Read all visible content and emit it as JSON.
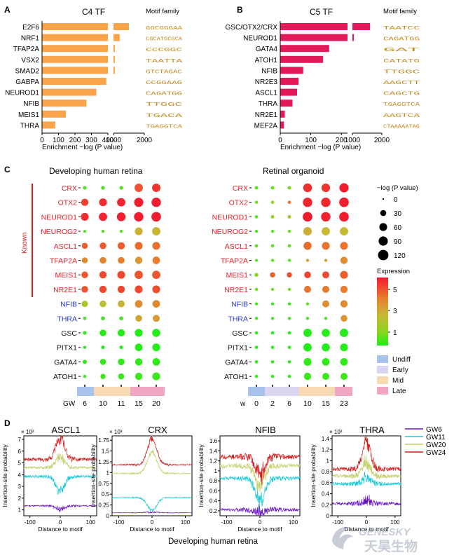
{
  "panels": {
    "A": {
      "letter": "A",
      "title": "C4 TF",
      "motif_title": "Motif family",
      "xlabel": "Enrichment −log (P value)",
      "ticks": [
        "0",
        "100",
        "200",
        "300",
        "400",
        "1000",
        "2000"
      ],
      "logos": [
        "GGCGGGAA",
        "CGCATGCGCA",
        "CCCGGC",
        "TAATTA",
        "GTCTAGAC",
        "CCGGAAG",
        "CAGATGG",
        "TTGGC",
        "TGACA",
        "TGAGGTCA"
      ]
    },
    "B": {
      "letter": "B",
      "title": "C5 TF",
      "motif_title": "Motif family",
      "xlabel": "Enrichment −log (P value)",
      "ticks": [
        "0",
        "100",
        "200",
        "1000",
        "2000"
      ],
      "logos": [
        "TAATCC",
        "CAGATGG",
        "GAT",
        "CATATG",
        "TTGGC",
        "AAGCTT",
        "CAGCTG",
        "TGAGGTCA",
        "AAGTCA",
        "CTAAAAATAG"
      ]
    },
    "C": {
      "letter": "C",
      "left_title": "Developing human retina",
      "right_title": "Retinal organoid",
      "known_label": "Known",
      "left_axis_prefix": "GW",
      "right_axis_prefix": "w",
      "left_ticks": [
        "6",
        "10",
        "11",
        "15",
        "20"
      ],
      "right_ticks": [
        "0",
        "2",
        "6",
        "10",
        "15",
        "23"
      ],
      "size_legend_title": "−log (P value)",
      "size_legend": [
        "0",
        "30",
        "60",
        "90",
        "120"
      ],
      "expr_title": "Expression",
      "expr_ticks": [
        "5",
        "3",
        "1"
      ],
      "stage_legend": [
        "Undiff",
        "Early",
        "Mid",
        "Late"
      ]
    },
    "D": {
      "letter": "D",
      "xlabel": "Distance to motif",
      "ylabel": "Insertion-site probability",
      "footer": "Developing human retina",
      "legend": [
        "GW6",
        "GW11",
        "GW20",
        "GW24"
      ]
    }
  },
  "colors": {
    "bar_A": "#f9a44a",
    "bar_B": "#e31a5a",
    "known": "#e8202a",
    "known_bar": "#d42020",
    "other": "#2b3bd6",
    "gw6": "#6a14c8",
    "gw11": "#19c9d6",
    "gw20": "#c6cf6a",
    "gw24": "#d11f1f",
    "undiff": "#a9c2ec",
    "early": "#d9d6f2",
    "mid": "#f7d9b3",
    "late": "#f0a6c2"
  },
  "chart_data": [
    {
      "id": "A",
      "type": "bar",
      "title": "C4 TF",
      "xlabel": "Enrichment −log (P value)",
      "orientation": "horizontal",
      "broken_axis": true,
      "categories": [
        "E2F6",
        "NRF1",
        "TFAP2A",
        "VSX2",
        "SMAD2",
        "GABPA",
        "NEUROD1",
        "NFIB",
        "MEIS1",
        "THRA"
      ],
      "values": [
        1500,
        1200,
        720,
        520,
        500,
        390,
        330,
        270,
        145,
        80
      ],
      "xlim": [
        0,
        2000
      ]
    },
    {
      "id": "B",
      "type": "bar",
      "title": "C5 TF",
      "xlabel": "Enrichment −log (P value)",
      "orientation": "horizontal",
      "broken_axis": true,
      "categories": [
        "GSC/OTX2/CRX",
        "NEUROD1",
        "GATA4",
        "ATOH1",
        "NFIB",
        "NR2E3",
        "ASCL1",
        "THRA",
        "NR2E1",
        "MEF2A"
      ],
      "values": [
        1600,
        225,
        160,
        140,
        75,
        60,
        55,
        40,
        15,
        12
      ],
      "xlim": [
        0,
        2000
      ]
    },
    {
      "id": "C-left",
      "type": "scatter",
      "title": "Developing human retina",
      "rows": [
        "CRX",
        "OTX2",
        "NEUROD1",
        "NEUROG2",
        "ASCL1",
        "TFAP2A",
        "MEIS1",
        "NR2E1",
        "NFIB",
        "THRA",
        "GSC",
        "PITX1",
        "GATA4",
        "ATOH1"
      ],
      "known_rows": 8,
      "columns": [
        "6",
        "10",
        "11",
        "15",
        "20"
      ],
      "column_stage": [
        "undiff",
        "mid",
        "mid",
        "late",
        "late"
      ],
      "pvalue": [
        [
          5,
          6,
          6,
          70,
          70
        ],
        [
          50,
          60,
          70,
          90,
          95
        ],
        [
          60,
          70,
          80,
          95,
          100
        ],
        [
          2,
          3,
          3,
          60,
          70
        ],
        [
          30,
          40,
          50,
          60,
          60
        ],
        [
          30,
          40,
          40,
          50,
          55
        ],
        [
          40,
          50,
          60,
          70,
          70
        ],
        [
          40,
          50,
          50,
          60,
          60
        ],
        [
          35,
          40,
          45,
          55,
          55
        ],
        [
          4,
          8,
          8,
          40,
          45
        ],
        [
          6,
          40,
          50,
          60,
          65
        ],
        [
          3,
          6,
          6,
          55,
          60
        ],
        [
          10,
          30,
          40,
          50,
          55
        ],
        [
          3,
          20,
          30,
          50,
          60
        ]
      ],
      "expression": [
        [
          0.3,
          0.4,
          0.5,
          4.8,
          5.5
        ],
        [
          5.2,
          5.6,
          5.8,
          6,
          6
        ],
        [
          5.6,
          5.8,
          5.9,
          6,
          6
        ],
        [
          0.4,
          0.5,
          0.5,
          2.5,
          2.4
        ],
        [
          4.5,
          4.6,
          4.5,
          4.2,
          4.1
        ],
        [
          3.4,
          3.6,
          3.8,
          3.2,
          3.8
        ],
        [
          4.7,
          5,
          5,
          4.8,
          4.7
        ],
        [
          4.8,
          5,
          5.1,
          5,
          4.9
        ],
        [
          1.8,
          2,
          2.4,
          3.4,
          3.5
        ],
        [
          0.3,
          0.3,
          0.4,
          2.8,
          3
        ],
        [
          0.1,
          0.1,
          0.1,
          0.1,
          0.1
        ],
        [
          0.1,
          0.1,
          0.1,
          0.1,
          0.1
        ],
        [
          0.2,
          0.2,
          0.2,
          0.2,
          0.2
        ],
        [
          0.3,
          0.3,
          0.3,
          0.3,
          0.3
        ]
      ],
      "xlabel": "GW"
    },
    {
      "id": "C-right",
      "type": "scatter",
      "title": "Retinal organoid",
      "rows": [
        "CRX",
        "OTX2",
        "NEUROD1",
        "NEUROG2",
        "ASCL1",
        "TFAP2A",
        "MEIS1",
        "NR2E1",
        "NFIB",
        "THRA",
        "GSC",
        "PITX1",
        "GATA4",
        "ATOH1"
      ],
      "known_rows": 8,
      "columns": [
        "0",
        "2",
        "6",
        "10",
        "15",
        "23"
      ],
      "column_stage": [
        "undiff",
        "early",
        "early",
        "mid",
        "mid",
        "late"
      ],
      "pvalue": [
        [
          5,
          5,
          5,
          80,
          75,
          90
        ],
        [
          3,
          4,
          4,
          95,
          95,
          100
        ],
        [
          4,
          5,
          5,
          100,
          95,
          100
        ],
        [
          3,
          3,
          3,
          75,
          70,
          70
        ],
        [
          4,
          4,
          4,
          65,
          60,
          60
        ],
        [
          2,
          3,
          3,
          3,
          3,
          50
        ],
        [
          8,
          20,
          20,
          40,
          45,
          60
        ],
        [
          3,
          3,
          3,
          45,
          45,
          50
        ],
        [
          3,
          3,
          3,
          3,
          45,
          50
        ],
        [
          3,
          3,
          3,
          3,
          3,
          40
        ],
        [
          4,
          4,
          4,
          70,
          65,
          70
        ],
        [
          4,
          4,
          4,
          70,
          65,
          60
        ],
        [
          4,
          4,
          4,
          60,
          55,
          55
        ],
        [
          4,
          4,
          4,
          50,
          45,
          45
        ]
      ],
      "expression": [
        [
          0.5,
          0.7,
          0.8,
          5.6,
          5.5,
          6
        ],
        [
          0.8,
          1,
          4,
          5.8,
          5.8,
          6
        ],
        [
          0.5,
          1,
          1.5,
          6,
          5.9,
          6
        ],
        [
          0.5,
          0.5,
          0.7,
          2.5,
          2.3,
          2.2
        ],
        [
          0.6,
          0.6,
          0.6,
          4.2,
          4,
          4
        ],
        [
          0.5,
          0.5,
          0.5,
          3,
          3,
          3.4
        ],
        [
          1,
          4.5,
          5,
          5.2,
          5,
          4.5
        ],
        [
          0.7,
          0.8,
          0.8,
          4,
          3.9,
          3.8
        ],
        [
          0.4,
          0.4,
          0.4,
          0.6,
          3.4,
          3.4
        ],
        [
          0.3,
          0.3,
          0.3,
          0.4,
          0.4,
          3.2
        ],
        [
          0.1,
          0.1,
          0.1,
          0.1,
          0.1,
          0.1
        ],
        [
          0.1,
          0.1,
          0.1,
          0.1,
          0.1,
          0.1
        ],
        [
          0.2,
          0.2,
          0.2,
          0.2,
          0.2,
          0.2
        ],
        [
          0.3,
          0.3,
          0.3,
          0.3,
          0.3,
          0.3
        ]
      ],
      "xlabel": "w"
    },
    {
      "id": "D-ASCL1",
      "type": "line",
      "title": "ASCL1",
      "y_scale_label": "× 10²",
      "ylim": [
        0.5,
        7.3
      ],
      "yticks": [
        1,
        2,
        3,
        4,
        5,
        6,
        7
      ],
      "xlim": [
        -120,
        120
      ],
      "xticks": [
        -100,
        0,
        100
      ],
      "series": [
        {
          "name": "GW6",
          "base": 1.35,
          "peak": -0.3,
          "noise": 0.1
        },
        {
          "name": "GW11",
          "base": 3.85,
          "peak": -1.3,
          "noise": 0.2
        },
        {
          "name": "GW20",
          "base": 4.6,
          "peak": 0.9,
          "noise": 0.18
        },
        {
          "name": "GW24",
          "base": 5.3,
          "peak": 1.9,
          "noise": 0.25
        }
      ]
    },
    {
      "id": "D-CRX",
      "type": "line",
      "title": "CRX",
      "y_scale_label": "× 10³",
      "ylim": [
        0,
        1.85
      ],
      "yticks": [
        0,
        0.25,
        0.5,
        0.75,
        1.0,
        1.25,
        1.5,
        1.75
      ],
      "xlim": [
        -120,
        120
      ],
      "xticks": [
        -100,
        0,
        100
      ],
      "series": [
        {
          "name": "GW6",
          "base": 0.07,
          "peak": 0.02,
          "noise": 0.01
        },
        {
          "name": "GW11",
          "base": 0.42,
          "peak": -0.3,
          "noise": 0.02
        },
        {
          "name": "GW20",
          "base": 0.98,
          "peak": 0.5,
          "noise": 0.025
        },
        {
          "name": "GW24",
          "base": 1.18,
          "peak": 0.6,
          "noise": 0.03
        }
      ]
    },
    {
      "id": "D-NFIB",
      "type": "line",
      "title": "NFIB",
      "y_scale_label": "",
      "ylim": [
        0.1,
        1.7
      ],
      "yticks": [
        0.2,
        0.4,
        0.6,
        0.8,
        1.0,
        1.2,
        1.4,
        1.6
      ],
      "xlim": [
        -120,
        120
      ],
      "xticks": [
        -100,
        0,
        100
      ],
      "series": [
        {
          "name": "GW6",
          "base": 0.22,
          "peak": -0.05,
          "noise": 0.06
        },
        {
          "name": "GW11",
          "base": 0.85,
          "peak": -0.45,
          "noise": 0.07
        },
        {
          "name": "GW20",
          "base": 1.1,
          "peak": -0.4,
          "noise": 0.08
        },
        {
          "name": "GW24",
          "base": 1.28,
          "peak": -0.35,
          "noise": 0.09
        }
      ]
    },
    {
      "id": "D-THRA",
      "type": "line",
      "title": "THRA",
      "y_scale_label": "× 10²",
      "ylim": [
        0,
        1.45
      ],
      "yticks": [
        0,
        0.2,
        0.4,
        0.6,
        0.8,
        1.0,
        1.2,
        1.4
      ],
      "xlim": [
        -120,
        120
      ],
      "xticks": [
        -100,
        0,
        100
      ],
      "series": [
        {
          "name": "GW6",
          "base": 0.22,
          "peak": 0.05,
          "noise": 0.05
        },
        {
          "name": "GW11",
          "base": 0.58,
          "peak": 0.12,
          "noise": 0.05
        },
        {
          "name": "GW20",
          "base": 0.72,
          "peak": 0.25,
          "noise": 0.06
        },
        {
          "name": "GW24",
          "base": 0.85,
          "peak": 0.5,
          "noise": 0.07
        }
      ]
    }
  ],
  "watermark": {
    "top": "GENESKY",
    "bottom": "天昊生物"
  }
}
